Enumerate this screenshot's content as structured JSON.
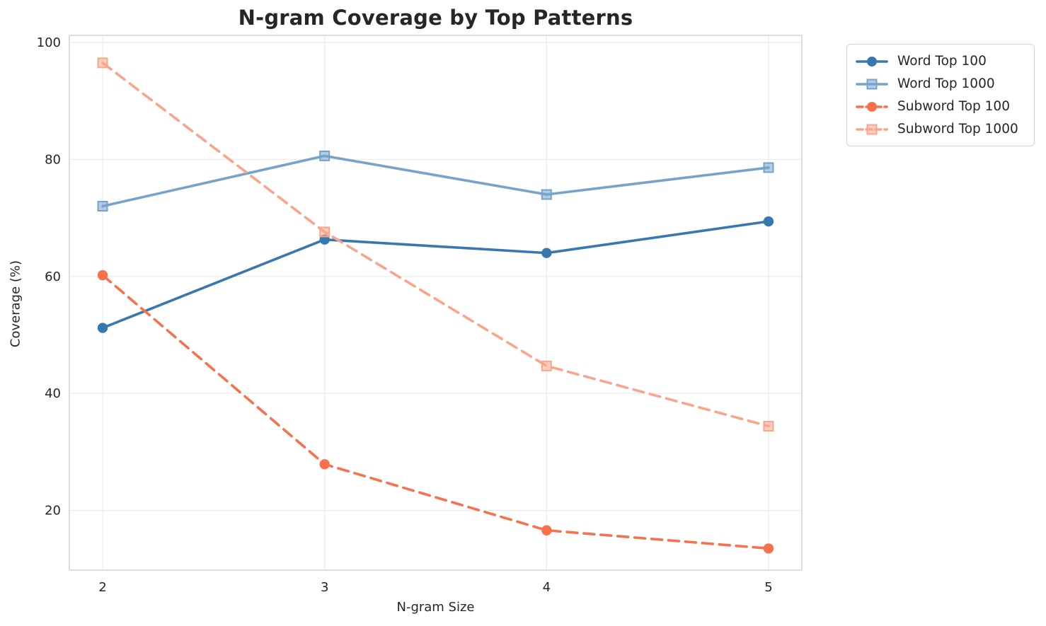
{
  "chart_data": {
    "type": "line",
    "title": "N-gram Coverage by Top Patterns",
    "xlabel": "N-gram Size",
    "ylabel": "Coverage (%)",
    "x": [
      2,
      3,
      4,
      5
    ],
    "x_tick_labels": [
      "2",
      "3",
      "4",
      "5"
    ],
    "y_ticks": [
      20,
      40,
      60,
      80,
      100
    ],
    "y_tick_labels": [
      "20",
      "40",
      "60",
      "80",
      "100"
    ],
    "xlim": [
      1.85,
      5.15
    ],
    "ylim": [
      9.8,
      101.2
    ],
    "grid": true,
    "legend_position": "outside-upper-right",
    "series": [
      {
        "name": "Word Top 100",
        "color": "#3878ae",
        "marker": "circle",
        "line_style": "solid",
        "values": [
          51.2,
          66.3,
          64.0,
          69.4
        ]
      },
      {
        "name": "Word Top 1000",
        "color": "#76a3cc",
        "marker": "square",
        "line_style": "solid",
        "values": [
          72.0,
          80.6,
          74.0,
          78.6
        ]
      },
      {
        "name": "Subword Top 100",
        "color": "#f7714d",
        "marker": "circle",
        "line_style": "dashed",
        "values": [
          60.2,
          27.9,
          16.6,
          13.5
        ]
      },
      {
        "name": "Subword Top 1000",
        "color": "#f9a58b",
        "marker": "square",
        "line_style": "dashed",
        "values": [
          96.5,
          67.6,
          44.7,
          34.4
        ]
      }
    ]
  },
  "style": {
    "grid_color": "#ececec",
    "spine_color": "#d5d5d5",
    "tick_text_color": "#262626",
    "background": "#ffffff"
  }
}
